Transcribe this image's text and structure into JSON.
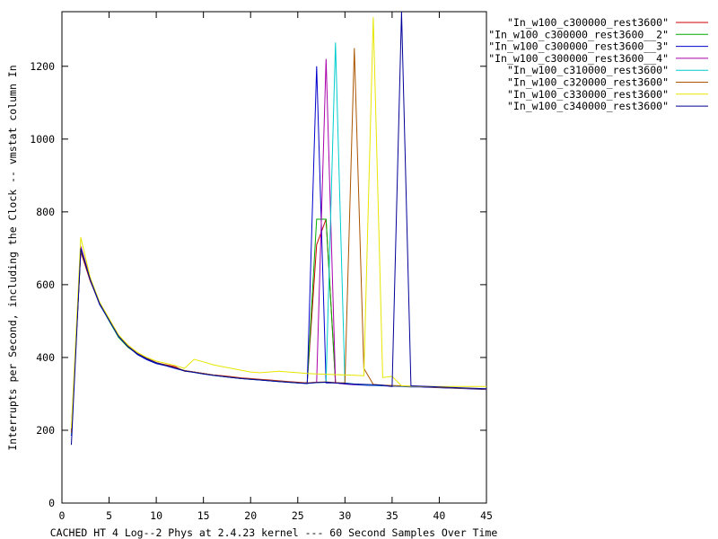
{
  "chart_data": {
    "type": "line",
    "title": "",
    "xlabel": "CACHED HT 4 Log--2 Phys at 2.4.23 kernel --- 60 Second Samples Over Time",
    "ylabel": "Interrupts per Second, including the Clock -- vmstat column In",
    "xlim": [
      0,
      45
    ],
    "ylim": [
      0,
      1350
    ],
    "xticks": [
      0,
      5,
      10,
      15,
      20,
      25,
      30,
      35,
      40,
      45
    ],
    "yticks": [
      0,
      200,
      400,
      600,
      800,
      1000,
      1200
    ],
    "grid": false,
    "legend_position": "top-right outside",
    "series": [
      {
        "name": "\"In_w100_c300000_rest3600\"",
        "color": "#cc0000",
        "x": [
          1,
          2,
          3,
          4,
          5,
          6,
          7,
          8,
          9,
          10,
          11,
          12,
          13,
          14,
          15,
          16,
          17,
          18,
          19,
          20,
          21,
          22,
          23,
          24,
          25,
          26,
          27,
          28,
          29,
          30,
          31,
          32,
          33,
          34,
          35,
          36,
          37,
          38,
          39,
          40,
          41,
          42,
          43,
          44,
          45
        ],
        "y": [
          200,
          690,
          610,
          550,
          505,
          460,
          430,
          410,
          395,
          385,
          380,
          375,
          362,
          360,
          355,
          352,
          350,
          347,
          344,
          342,
          340,
          338,
          336,
          334,
          332,
          330,
          710,
          780,
          330,
          328,
          326,
          325,
          324,
          323,
          322,
          321,
          320,
          320,
          319,
          318,
          317,
          316,
          315,
          314,
          313
        ]
      },
      {
        "name": "\"In_w100_c300000_rest3600__2\"",
        "color": "#00aa00",
        "x": [
          1,
          2,
          3,
          4,
          5,
          6,
          7,
          8,
          9,
          10,
          11,
          12,
          13,
          14,
          15,
          16,
          17,
          18,
          19,
          20,
          21,
          22,
          23,
          24,
          25,
          26,
          27,
          28,
          29,
          30,
          31,
          32,
          33,
          34,
          35,
          36,
          37,
          38,
          39,
          40,
          41,
          42,
          43,
          44,
          45
        ],
        "y": [
          195,
          695,
          615,
          548,
          500,
          455,
          428,
          410,
          396,
          384,
          378,
          372,
          364,
          360,
          356,
          352,
          349,
          346,
          343,
          341,
          339,
          337,
          335,
          333,
          331,
          330,
          780,
          780,
          330,
          328,
          326,
          325,
          324,
          323,
          322,
          321,
          320,
          320,
          319,
          318,
          317,
          316,
          315,
          314,
          313
        ]
      },
      {
        "name": "\"In_w100_c300000_rest3600__3\"",
        "color": "#0000cc",
        "x": [
          1,
          2,
          3,
          4,
          5,
          6,
          7,
          8,
          9,
          10,
          11,
          12,
          13,
          14,
          15,
          16,
          17,
          18,
          19,
          20,
          21,
          22,
          23,
          24,
          25,
          26,
          27,
          28,
          29,
          30,
          31,
          32,
          33,
          34,
          35,
          36,
          37,
          38,
          39,
          40,
          41,
          42,
          43,
          44,
          45
        ],
        "y": [
          185,
          700,
          612,
          545,
          502,
          458,
          430,
          408,
          394,
          383,
          377,
          370,
          363,
          359,
          355,
          351,
          348,
          345,
          342,
          340,
          338,
          336,
          334,
          332,
          330,
          328,
          1200,
          330,
          330,
          327,
          325,
          324,
          323,
          322,
          321,
          320,
          319,
          319,
          318,
          317,
          316,
          315,
          314,
          313,
          312
        ]
      },
      {
        "name": "\"In_w100_c300000_rest3600__4\"",
        "color": "#aa00aa",
        "x": [
          1,
          2,
          3,
          4,
          5,
          6,
          7,
          8,
          9,
          10,
          11,
          12,
          13,
          14,
          15,
          16,
          17,
          18,
          19,
          20,
          21,
          22,
          23,
          24,
          25,
          26,
          27,
          28,
          29,
          30,
          31,
          32,
          33,
          34,
          35,
          36,
          37,
          38,
          39,
          40,
          41,
          42,
          43,
          44,
          45
        ],
        "y": [
          190,
          705,
          618,
          550,
          504,
          460,
          432,
          412,
          398,
          386,
          379,
          372,
          364,
          360,
          356,
          352,
          349,
          346,
          343,
          341,
          339,
          337,
          335,
          333,
          331,
          330,
          332,
          1220,
          330,
          328,
          326,
          325,
          324,
          323,
          322,
          321,
          320,
          320,
          319,
          318,
          317,
          316,
          315,
          314,
          313
        ]
      },
      {
        "name": "\"In_w100_c310000_rest3600\"",
        "color": "#00cccc",
        "x": [
          1,
          2,
          3,
          4,
          5,
          6,
          7,
          8,
          9,
          10,
          11,
          12,
          13,
          14,
          15,
          16,
          17,
          18,
          19,
          20,
          21,
          22,
          23,
          24,
          25,
          26,
          27,
          28,
          29,
          30,
          31,
          32,
          33,
          34,
          35,
          36,
          37,
          38,
          39,
          40,
          41,
          42,
          43,
          44,
          45
        ],
        "y": [
          188,
          700,
          615,
          547,
          501,
          457,
          430,
          410,
          396,
          385,
          378,
          371,
          363,
          359,
          355,
          351,
          348,
          345,
          342,
          340,
          338,
          336,
          334,
          332,
          330,
          329,
          331,
          332,
          1265,
          330,
          327,
          325,
          324,
          323,
          322,
          321,
          320,
          320,
          319,
          318,
          317,
          316,
          315,
          314,
          313
        ]
      },
      {
        "name": "\"In_w100_c320000_rest3600\"",
        "color": "#aa5500",
        "x": [
          1,
          2,
          3,
          4,
          5,
          6,
          7,
          8,
          9,
          10,
          11,
          12,
          13,
          14,
          15,
          16,
          17,
          18,
          19,
          20,
          21,
          22,
          23,
          24,
          25,
          26,
          27,
          28,
          29,
          30,
          31,
          32,
          33,
          34,
          35,
          36,
          37,
          38,
          39,
          40,
          41,
          42,
          43,
          44,
          45
        ],
        "y": [
          192,
          698,
          613,
          548,
          503,
          459,
          431,
          411,
          397,
          386,
          379,
          372,
          364,
          360,
          356,
          352,
          349,
          346,
          343,
          341,
          339,
          337,
          335,
          333,
          331,
          330,
          332,
          333,
          331,
          330,
          1250,
          370,
          326,
          324,
          323,
          322,
          321,
          320,
          319,
          318,
          317,
          316,
          315,
          314,
          313
        ]
      },
      {
        "name": "\"In_w100_c330000_rest3600\"",
        "color": "#e6e600",
        "x": [
          1,
          2,
          3,
          4,
          5,
          6,
          7,
          8,
          9,
          10,
          11,
          12,
          13,
          14,
          15,
          16,
          17,
          18,
          19,
          20,
          21,
          22,
          23,
          24,
          25,
          26,
          27,
          28,
          29,
          30,
          31,
          32,
          33,
          34,
          35,
          36,
          37,
          38,
          39,
          40,
          41,
          42,
          43,
          44,
          45
        ],
        "y": [
          205,
          730,
          620,
          552,
          507,
          462,
          434,
          414,
          400,
          390,
          384,
          378,
          370,
          395,
          388,
          380,
          375,
          370,
          365,
          360,
          358,
          360,
          362,
          360,
          358,
          356,
          355,
          354,
          353,
          352,
          351,
          350,
          1335,
          345,
          348,
          322,
          321,
          320,
          320,
          320,
          320,
          320,
          320,
          320,
          320
        ]
      },
      {
        "name": "\"In_w100_c340000_rest3600\"",
        "color": "#000099",
        "x": [
          1,
          2,
          3,
          4,
          5,
          6,
          7,
          8,
          9,
          10,
          11,
          12,
          13,
          14,
          15,
          16,
          17,
          18,
          19,
          20,
          21,
          22,
          23,
          24,
          25,
          26,
          27,
          28,
          29,
          30,
          31,
          32,
          33,
          34,
          35,
          36,
          37,
          38,
          39,
          40,
          41,
          42,
          43,
          44,
          45
        ],
        "y": [
          160,
          700,
          614,
          548,
          502,
          458,
          430,
          410,
          396,
          385,
          378,
          371,
          363,
          359,
          355,
          351,
          348,
          345,
          342,
          340,
          338,
          336,
          334,
          332,
          330,
          329,
          331,
          332,
          330,
          329,
          327,
          326,
          325,
          324,
          320,
          1350,
          322,
          321,
          320,
          319,
          318,
          317,
          316,
          315,
          314
        ]
      }
    ]
  }
}
